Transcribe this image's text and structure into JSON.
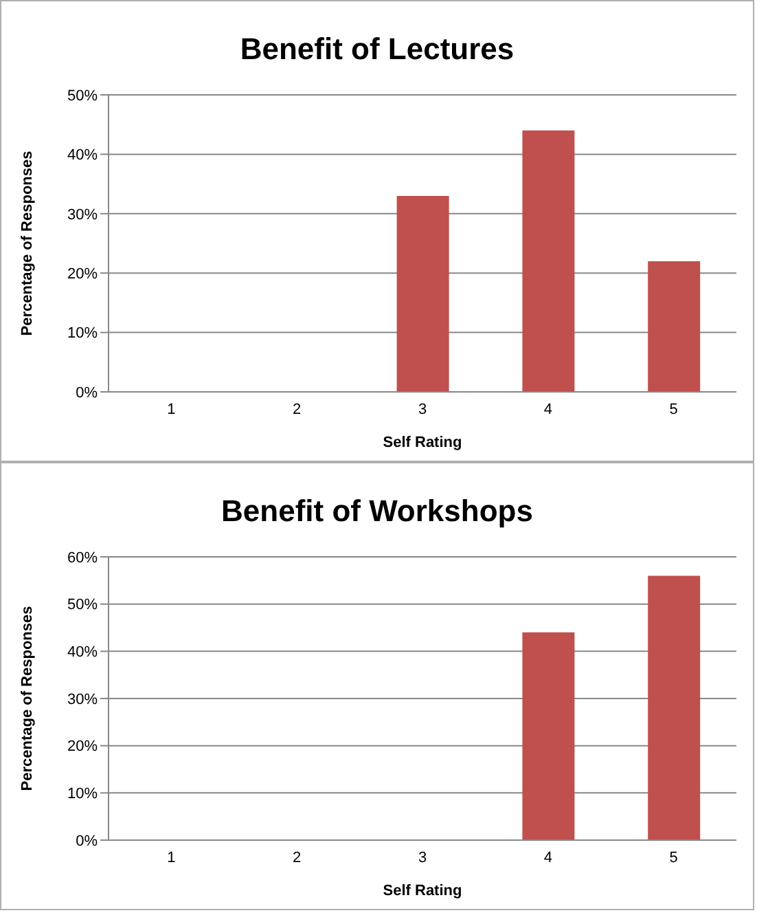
{
  "chart_data": [
    {
      "type": "bar",
      "title": "Benefit of Lectures",
      "xlabel": "Self Rating",
      "ylabel": "Percentage of Responses",
      "categories": [
        "1",
        "2",
        "3",
        "4",
        "5"
      ],
      "values": [
        0,
        0,
        33,
        44,
        22
      ],
      "color": "#c0504d",
      "ylim": [
        0,
        50
      ],
      "yticks": [
        {
          "value": 0,
          "label": "0%"
        },
        {
          "value": 10,
          "label": "10%"
        },
        {
          "value": 20,
          "label": "20%"
        },
        {
          "value": 30,
          "label": "30%"
        },
        {
          "value": 40,
          "label": "40%"
        },
        {
          "value": 50,
          "label": "50%"
        }
      ],
      "grid": "y"
    },
    {
      "type": "bar",
      "title": "Benefit of Workshops",
      "xlabel": "Self Rating",
      "ylabel": "Percentage of Responses",
      "categories": [
        "1",
        "2",
        "3",
        "4",
        "5"
      ],
      "values": [
        0,
        0,
        0,
        44,
        56
      ],
      "color": "#c0504d",
      "ylim": [
        0,
        60
      ],
      "yticks": [
        {
          "value": 0,
          "label": "0%"
        },
        {
          "value": 10,
          "label": "10%"
        },
        {
          "value": 20,
          "label": "20%"
        },
        {
          "value": 30,
          "label": "30%"
        },
        {
          "value": 40,
          "label": "40%"
        },
        {
          "value": 50,
          "label": "50%"
        },
        {
          "value": 60,
          "label": "60%"
        }
      ],
      "grid": "y"
    }
  ]
}
